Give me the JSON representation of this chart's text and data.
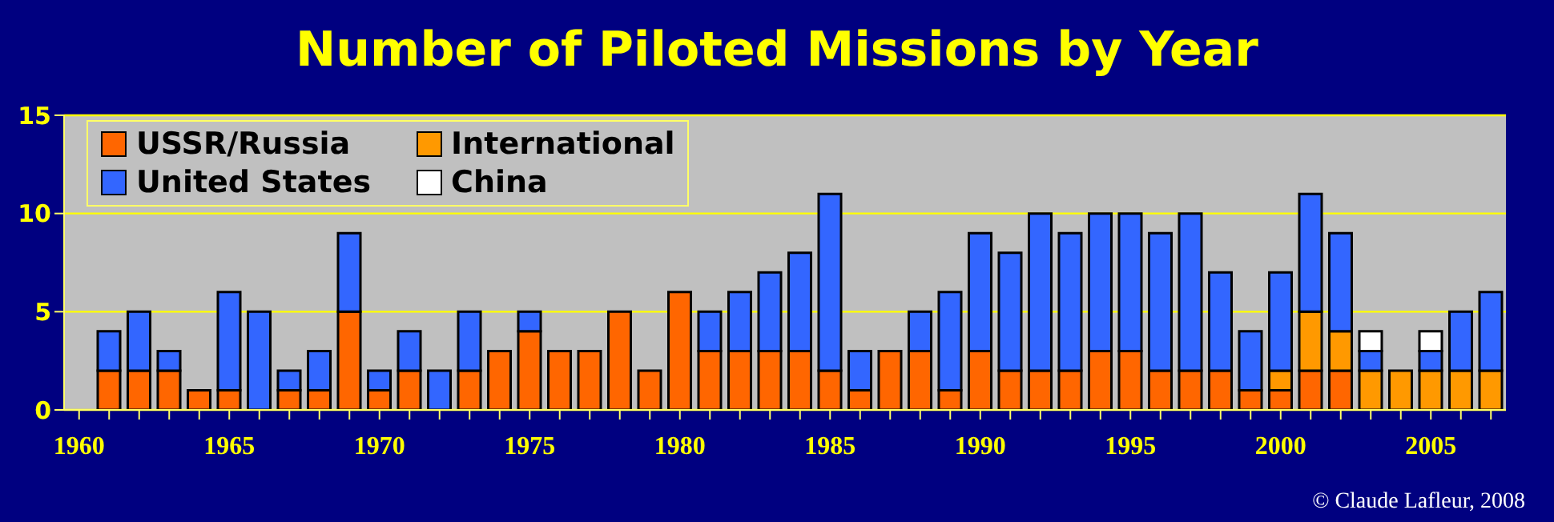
{
  "chart_data": {
    "type": "bar",
    "title": "Number of Piloted Missions by Year",
    "stacked": true,
    "categories": [
      "1960",
      null,
      null,
      null,
      null,
      "1965",
      null,
      null,
      null,
      null,
      "1970",
      null,
      null,
      null,
      null,
      "1975",
      null,
      null,
      null,
      null,
      "1980",
      null,
      null,
      null,
      null,
      "1985",
      null,
      null,
      null,
      null,
      "1990",
      null,
      null,
      null,
      null,
      "1995",
      null,
      null,
      null,
      null,
      "2000",
      null,
      null,
      null,
      null,
      "2005",
      null,
      null
    ],
    "series": [
      {
        "name": "USSR/Russia",
        "color": "#ff6600",
        "values": [
          0,
          2,
          2,
          2,
          1,
          1,
          0,
          1,
          1,
          5,
          1,
          2,
          0,
          2,
          3,
          4,
          3,
          3,
          5,
          2,
          6,
          3,
          3,
          3,
          3,
          2,
          1,
          3,
          3,
          1,
          3,
          2,
          2,
          2,
          3,
          3,
          2,
          2,
          2,
          1,
          1,
          2,
          2,
          0,
          0,
          0,
          0,
          0
        ]
      },
      {
        "name": "International",
        "color": "#ff9900",
        "values": [
          0,
          0,
          0,
          0,
          0,
          0,
          0,
          0,
          0,
          0,
          0,
          0,
          0,
          0,
          0,
          0,
          0,
          0,
          0,
          0,
          0,
          0,
          0,
          0,
          0,
          0,
          0,
          0,
          0,
          0,
          0,
          0,
          0,
          0,
          0,
          0,
          0,
          0,
          0,
          0,
          1,
          3,
          2,
          2,
          2,
          2,
          2,
          2
        ]
      },
      {
        "name": "United States",
        "color": "#3366ff",
        "values": [
          0,
          2,
          3,
          1,
          0,
          5,
          5,
          1,
          2,
          4,
          1,
          2,
          2,
          3,
          0,
          1,
          0,
          0,
          0,
          0,
          0,
          2,
          3,
          4,
          5,
          9,
          2,
          0,
          2,
          5,
          6,
          6,
          8,
          7,
          7,
          7,
          7,
          8,
          5,
          3,
          5,
          6,
          5,
          1,
          0,
          1,
          3,
          4
        ]
      },
      {
        "name": "China",
        "color": "#ffffff",
        "values": [
          0,
          0,
          0,
          0,
          0,
          0,
          0,
          0,
          0,
          0,
          0,
          0,
          0,
          0,
          0,
          0,
          0,
          0,
          0,
          0,
          0,
          0,
          0,
          0,
          0,
          0,
          0,
          0,
          0,
          0,
          0,
          0,
          0,
          0,
          0,
          0,
          0,
          0,
          0,
          0,
          0,
          0,
          0,
          1,
          0,
          1,
          0,
          0
        ]
      }
    ],
    "ylim": [
      0,
      15
    ],
    "yticks": [
      0,
      5,
      10,
      15
    ],
    "grid": "y",
    "legend": "top left",
    "annotations": [
      "© Claude Lafleur, 2008"
    ]
  }
}
